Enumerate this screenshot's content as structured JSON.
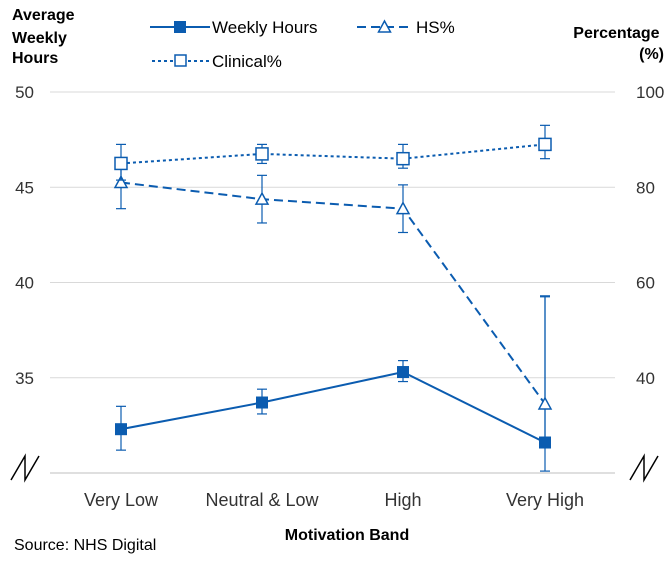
{
  "chart_data": {
    "type": "line",
    "categories": [
      "Very Low",
      "Neutral & Low",
      "High",
      "Very High"
    ],
    "xlabel": "Motivation Band",
    "left_axis": {
      "label_lines": [
        "Average",
        "Weekly",
        "Hours"
      ],
      "ticks": [
        35,
        40,
        45,
        50
      ],
      "range": [
        30,
        50
      ],
      "broken": true
    },
    "right_axis": {
      "label_lines": [
        "Percentage",
        "(%)"
      ],
      "ticks": [
        40,
        60,
        80,
        100
      ],
      "range": [
        20,
        100
      ],
      "broken": true
    },
    "grid": true,
    "legend_position": "top",
    "series": [
      {
        "name": "Weekly Hours",
        "axis": "left",
        "style": "solid",
        "marker": "filled-square",
        "color": "#0b5cb0",
        "values": [
          32.3,
          33.7,
          35.3,
          31.6
        ],
        "err_low": [
          31.2,
          33.1,
          34.8,
          30.1
        ],
        "err_high": [
          33.5,
          34.4,
          35.9,
          39.3
        ]
      },
      {
        "name": "HS%",
        "axis": "right",
        "style": "dashed",
        "marker": "open-triangle",
        "color": "#0b5cb0",
        "values": [
          81,
          77.5,
          75.5,
          34.5
        ],
        "err_low": [
          75.5,
          72.5,
          70.5,
          27.5
        ],
        "err_high": [
          86,
          82.5,
          80.5,
          57
        ]
      },
      {
        "name": "Clinical%",
        "axis": "right",
        "style": "dotted",
        "marker": "open-square",
        "color": "#0b5cb0",
        "values": [
          85,
          87,
          86,
          89
        ],
        "err_low": [
          81.5,
          85,
          84,
          86
        ],
        "err_high": [
          89,
          89,
          89,
          93
        ]
      }
    ]
  },
  "source": "Source: NHS Digital"
}
